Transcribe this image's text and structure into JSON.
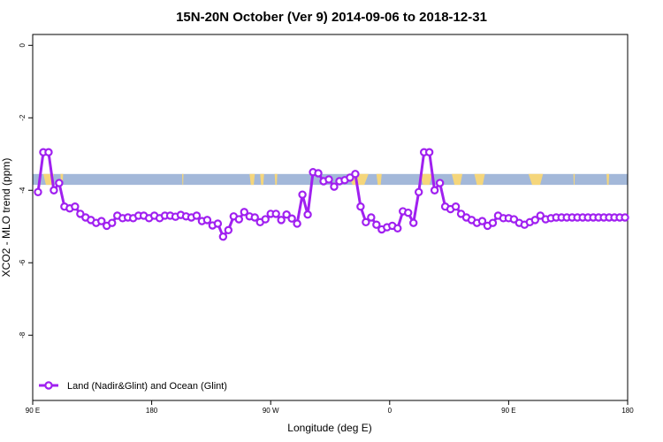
{
  "chart_data": {
    "type": "line",
    "title": "15N-20N October (Ver 9)   2014-09-06 to 2018-12-31",
    "xlabel": "Longitude (deg E)",
    "ylabel": "XCO2 - MLO trend (ppm)",
    "xlim": [
      90,
      540
    ],
    "ylim": [
      -9.8,
      0.3
    ],
    "x_ticks": [
      {
        "value": 90,
        "label": "90 E"
      },
      {
        "value": 180,
        "label": "180"
      },
      {
        "value": 270,
        "label": "90 W"
      },
      {
        "value": 360,
        "label": "0"
      },
      {
        "value": 450,
        "label": "90 E"
      },
      {
        "value": 540,
        "label": "180"
      }
    ],
    "y_ticks": [
      {
        "value": 0,
        "label": "0"
      },
      {
        "value": -2,
        "label": "-2"
      },
      {
        "value": -4,
        "label": "-4"
      },
      {
        "value": -6,
        "label": "-6"
      },
      {
        "value": -8,
        "label": "-8"
      }
    ],
    "background_band": {
      "y_range": [
        -3.85,
        -3.55
      ],
      "ocean_color": "#a3b8d9",
      "land_color": "#f5d67b"
    },
    "series": [
      {
        "name": "Land (Nadir&Glint) and Ocean (Glint)",
        "color": "#a020f0",
        "marker": "open-circle",
        "x": [
          94,
          98,
          102,
          106,
          110,
          114,
          118,
          122,
          126,
          130,
          134,
          138,
          142,
          146,
          150,
          154,
          158,
          162,
          166,
          170,
          174,
          178,
          182,
          186,
          190,
          194,
          198,
          202,
          206,
          210,
          214,
          218,
          222,
          226,
          230,
          234,
          238,
          242,
          246,
          250,
          254,
          258,
          262,
          266,
          270,
          274,
          278,
          282,
          286,
          290,
          294,
          298,
          302,
          306,
          310,
          314,
          318,
          322,
          326,
          330,
          334,
          338,
          342,
          346,
          350,
          354,
          358,
          362,
          366,
          370,
          374,
          378,
          382,
          386,
          390,
          394,
          398,
          402,
          406,
          410,
          414,
          418,
          422,
          426,
          430,
          434,
          438,
          442,
          446,
          450,
          454,
          458,
          462,
          466,
          470,
          474,
          478,
          482,
          486,
          490,
          494,
          498,
          502,
          506,
          510,
          514,
          518,
          522,
          526,
          530,
          534,
          538
        ],
        "y": [
          -4.05,
          -2.95,
          -2.95,
          -4.0,
          -3.8,
          -4.45,
          -4.5,
          -4.45,
          -4.65,
          -4.75,
          -4.82,
          -4.9,
          -4.85,
          -4.98,
          -4.9,
          -4.7,
          -4.77,
          -4.75,
          -4.77,
          -4.7,
          -4.7,
          -4.77,
          -4.7,
          -4.77,
          -4.7,
          -4.7,
          -4.73,
          -4.68,
          -4.72,
          -4.75,
          -4.7,
          -4.85,
          -4.82,
          -4.97,
          -4.92,
          -5.28,
          -5.1,
          -4.72,
          -4.8,
          -4.6,
          -4.72,
          -4.75,
          -4.88,
          -4.8,
          -4.65,
          -4.65,
          -4.82,
          -4.67,
          -4.78,
          -4.92,
          -4.12,
          -4.67,
          -3.5,
          -3.53,
          -3.75,
          -3.7,
          -3.9,
          -3.75,
          -3.72,
          -3.65,
          -3.55,
          -4.45,
          -4.88,
          -4.75,
          -4.95,
          -5.08,
          -5.02,
          -4.98,
          -5.05,
          -4.58,
          -4.62,
          -4.9,
          -4.05,
          -2.95,
          -2.95,
          -4.0,
          -3.8,
          -4.45,
          -4.52,
          -4.45,
          -4.65,
          -4.75,
          -4.82,
          -4.9,
          -4.85,
          -4.98,
          -4.9,
          -4.7,
          -4.77,
          -4.77,
          -4.8,
          -4.9,
          -4.95,
          -4.88,
          -4.82,
          -4.7,
          -4.8,
          -4.77,
          -4.75,
          -4.75,
          -4.75,
          -4.75,
          -4.75,
          -4.75,
          -4.75,
          -4.75,
          -4.75,
          -4.75,
          -4.75,
          -4.75,
          -4.75,
          -4.75
        ]
      }
    ],
    "legend": "bottom-left",
    "grid": false
  }
}
